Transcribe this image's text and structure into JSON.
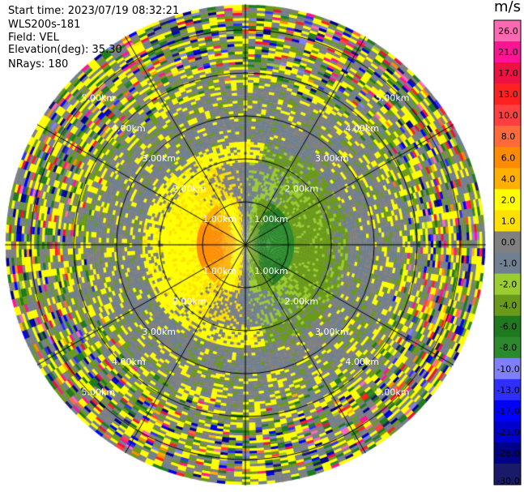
{
  "header": {
    "start_time": "Start time: 2023/07/19 08:32:21",
    "instrument": "WLS200s-181",
    "field": "Field: VEL",
    "elevation": "Elevation(deg): 35.30",
    "nrays": "NRays: 180"
  },
  "chart_data": {
    "type": "heatmap",
    "title": "",
    "field": "VEL",
    "projection": "polar PPI",
    "nrays": 180,
    "elevation_deg": 35.3,
    "range_rings": [
      {
        "range_km": 1,
        "label": "1.00km"
      },
      {
        "range_km": 2,
        "label": "2.00km"
      },
      {
        "range_km": 3,
        "label": "3.00km"
      },
      {
        "range_km": 4,
        "label": "4.00km"
      },
      {
        "range_km": 5,
        "label": "5.00km"
      }
    ],
    "max_range_km": 5.6,
    "spokes_deg": [
      0,
      30,
      60,
      90,
      120,
      150,
      180,
      210,
      240,
      270,
      300,
      330
    ],
    "colorbar": {
      "unit": "m/s",
      "boundaries": [
        -30,
        -26,
        -21,
        -17,
        -13,
        -10,
        -8,
        -6,
        -4,
        -2,
        -1,
        0,
        1,
        2,
        4,
        6,
        8,
        10,
        13,
        17,
        21,
        26,
        30
      ],
      "tick_labels": [
        "-30.0",
        "-26.0",
        "-21.0",
        "-17.0",
        "-13.0",
        "-10.0",
        "-8.0",
        "-6.0",
        "-4.0",
        "-2.0",
        "-1.0",
        "0.0",
        "1.0",
        "2.0",
        "4.0",
        "6.0",
        "8.0",
        "10.0",
        "13.0",
        "17.0",
        "21.0",
        "26.0"
      ],
      "colors": [
        "#1a1a6a",
        "#000088",
        "#0000cc",
        "#0000ff",
        "#2e2eff",
        "#8080ff",
        "#2b8a2b",
        "#1f7a1f",
        "#6a9a1a",
        "#9acd32",
        "#708090",
        "#808080",
        "#ffe000",
        "#ffff00",
        "#ffb000",
        "#ff8c00",
        "#ff6a3a",
        "#ff4040",
        "#ff2020",
        "#ee1144",
        "#ff1493",
        "#ff69b4"
      ]
    },
    "features": {
      "near_field_inbound_center_deg": 90,
      "near_field_outbound_center_deg": 270,
      "core_speed_ms": 7,
      "far_field": "noisy speckle beyond 4 km"
    }
  }
}
